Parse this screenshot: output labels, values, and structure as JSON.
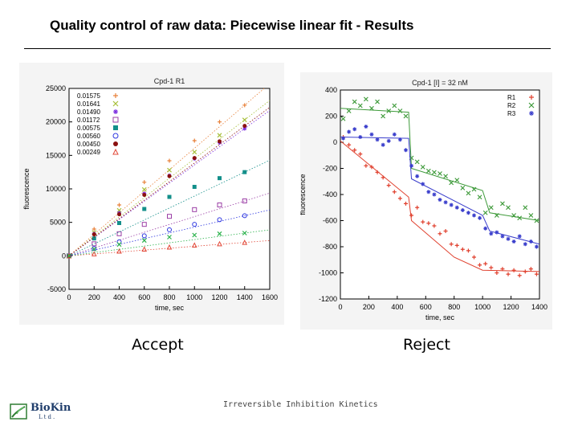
{
  "slide": {
    "title": "Quality control of raw data: Piecewise linear fit - Results",
    "accept_label": "Accept",
    "reject_label": "Reject",
    "footer": "Irreversible Inhibition Kinetics",
    "logo_name": "BioKin",
    "logo_sub": "Ltd."
  },
  "chart_data": [
    {
      "type": "scatter",
      "title": "Cpd-1 R1",
      "xlabel": "time, sec",
      "ylabel": "fluorescence",
      "xlim": [
        0,
        1600
      ],
      "ylim": [
        -5000,
        25000
      ],
      "xticks": [
        0,
        200,
        400,
        600,
        800,
        1000,
        1200,
        1400,
        1600
      ],
      "yticks": [
        -5000,
        0,
        5000,
        10000,
        15000,
        20000,
        25000
      ],
      "legend_position": "top-left",
      "grid": false,
      "fit_lines": "dotted",
      "series": [
        {
          "name": "0.01575",
          "color": "#e8813a",
          "marker": "plus",
          "x": [
            0,
            200,
            400,
            600,
            800,
            1000,
            1200,
            1400
          ],
          "y": [
            0,
            4000,
            7600,
            11000,
            14200,
            17200,
            20000,
            22500
          ]
        },
        {
          "name": "0.01641",
          "color": "#a7bf3a",
          "marker": "x",
          "x": [
            0,
            200,
            400,
            600,
            800,
            1000,
            1200,
            1400
          ],
          "y": [
            0,
            3500,
            6800,
            9900,
            12800,
            15500,
            18000,
            20300
          ]
        },
        {
          "name": "0.01490",
          "color": "#7c2ee0",
          "marker": "asterisk",
          "x": [
            0,
            200,
            400,
            600,
            800,
            1000,
            1200,
            1400
          ],
          "y": [
            0,
            3300,
            6400,
            9300,
            12000,
            14500,
            16900,
            19000
          ]
        },
        {
          "name": "0.01172",
          "color": "#9b3fa6",
          "marker": "open-square",
          "x": [
            0,
            200,
            400,
            600,
            800,
            1000,
            1200,
            1400
          ],
          "y": [
            0,
            1800,
            3300,
            4700,
            5900,
            6900,
            7600,
            8200
          ]
        },
        {
          "name": "0.00575",
          "color": "#138f8a",
          "marker": "filled-square",
          "x": [
            0,
            200,
            400,
            600,
            800,
            1000,
            1200,
            1400
          ],
          "y": [
            0,
            2600,
            4900,
            7000,
            8800,
            10300,
            11600,
            12500
          ]
        },
        {
          "name": "0.00560",
          "color": "#2d36e0",
          "marker": "open-circle",
          "x": [
            0,
            200,
            400,
            600,
            800,
            1000,
            1200,
            1400
          ],
          "y": [
            0,
            1100,
            2100,
            3000,
            3900,
            4700,
            5400,
            6000
          ]
        },
        {
          "name": "0.00450",
          "color": "#8b1010",
          "marker": "filled-circle",
          "x": [
            0,
            200,
            400,
            600,
            800,
            1000,
            1200,
            1400
          ],
          "y": [
            0,
            3200,
            6200,
            9100,
            11900,
            14600,
            17100,
            19400
          ]
        },
        {
          "name": "0.00249",
          "color": "#e24a3a",
          "marker": "triangle",
          "x": [
            0,
            200,
            400,
            600,
            800,
            1000,
            1200,
            1400
          ],
          "y": [
            0,
            300,
            700,
            1000,
            1300,
            1600,
            1800,
            2000
          ]
        },
        {
          "name": "",
          "color": "#2bb24c",
          "marker": "x",
          "x": [
            0,
            200,
            400,
            600,
            800,
            1000,
            1200,
            1400
          ],
          "y": [
            0,
            1000,
            1700,
            2300,
            2800,
            3100,
            3300,
            3400
          ]
        }
      ]
    },
    {
      "type": "scatter",
      "title": "Cpd-1 [I] = 32 nM",
      "xlabel": "time, sec",
      "ylabel": "fluorescence",
      "xlim": [
        0,
        1400
      ],
      "ylim": [
        -1200,
        400
      ],
      "xticks": [
        0,
        200,
        400,
        600,
        800,
        1000,
        1200,
        1400
      ],
      "yticks": [
        -1200,
        -1000,
        -800,
        -600,
        -400,
        -200,
        0,
        200,
        400
      ],
      "legend_position": "top-right",
      "grid": false,
      "series": [
        {
          "name": "R1",
          "color": "#e0402e",
          "marker": "plus",
          "x": [
            20,
            60,
            100,
            140,
            180,
            220,
            260,
            300,
            340,
            380,
            420,
            460,
            500,
            540,
            580,
            620,
            660,
            700,
            740,
            780,
            820,
            860,
            900,
            940,
            980,
            1020,
            1060,
            1100,
            1140,
            1180,
            1220,
            1260,
            1300,
            1340,
            1380
          ],
          "y": [
            40,
            -20,
            -60,
            -90,
            -180,
            -190,
            -230,
            -270,
            -330,
            -380,
            -430,
            -470,
            -560,
            -500,
            -610,
            -620,
            -640,
            -700,
            -680,
            -780,
            -790,
            -820,
            -830,
            -880,
            -940,
            -930,
            -960,
            -1000,
            -970,
            -1010,
            -980,
            -1020,
            -990,
            -970,
            -1010
          ],
          "fit": {
            "x": [
              0,
              480,
              500,
              800,
              1000,
              1400
            ],
            "y": [
              10,
              -420,
              -600,
              -880,
              -980,
              -990
            ]
          }
        },
        {
          "name": "R2",
          "color": "#3e9a3a",
          "marker": "x",
          "x": [
            20,
            60,
            100,
            140,
            180,
            220,
            260,
            300,
            340,
            380,
            420,
            460,
            500,
            540,
            580,
            620,
            660,
            700,
            740,
            780,
            820,
            860,
            900,
            940,
            980,
            1020,
            1060,
            1100,
            1140,
            1180,
            1220,
            1260,
            1300,
            1340,
            1380
          ],
          "y": [
            180,
            240,
            310,
            280,
            330,
            260,
            310,
            200,
            240,
            280,
            240,
            200,
            -120,
            -150,
            -190,
            -220,
            -230,
            -240,
            -260,
            -310,
            -290,
            -350,
            -390,
            -360,
            -420,
            -540,
            -500,
            -560,
            -470,
            -500,
            -560,
            -580,
            -500,
            -560,
            -600
          ],
          "fit": {
            "x": [
              0,
              480,
              500,
              1000,
              1050,
              1400
            ],
            "y": [
              260,
              230,
              -200,
              -370,
              -540,
              -600
            ]
          }
        },
        {
          "name": "R3",
          "color": "#3b3fcc",
          "marker": "asterisk",
          "x": [
            20,
            60,
            100,
            140,
            180,
            220,
            260,
            300,
            340,
            380,
            420,
            460,
            500,
            540,
            580,
            620,
            660,
            700,
            740,
            780,
            820,
            860,
            900,
            940,
            980,
            1020,
            1060,
            1100,
            1140,
            1180,
            1220,
            1260,
            1300,
            1340,
            1380
          ],
          "y": [
            30,
            80,
            100,
            40,
            120,
            60,
            20,
            -20,
            10,
            60,
            20,
            -60,
            -180,
            -260,
            -320,
            -380,
            -400,
            -440,
            -460,
            -480,
            -500,
            -520,
            -540,
            -560,
            -580,
            -660,
            -700,
            -690,
            -720,
            -740,
            -760,
            -720,
            -780,
            -760,
            -800
          ],
          "fit": {
            "x": [
              0,
              480,
              500,
              1000,
              1050,
              1400
            ],
            "y": [
              40,
              30,
              -280,
              -560,
              -680,
              -780
            ]
          }
        }
      ]
    }
  ]
}
